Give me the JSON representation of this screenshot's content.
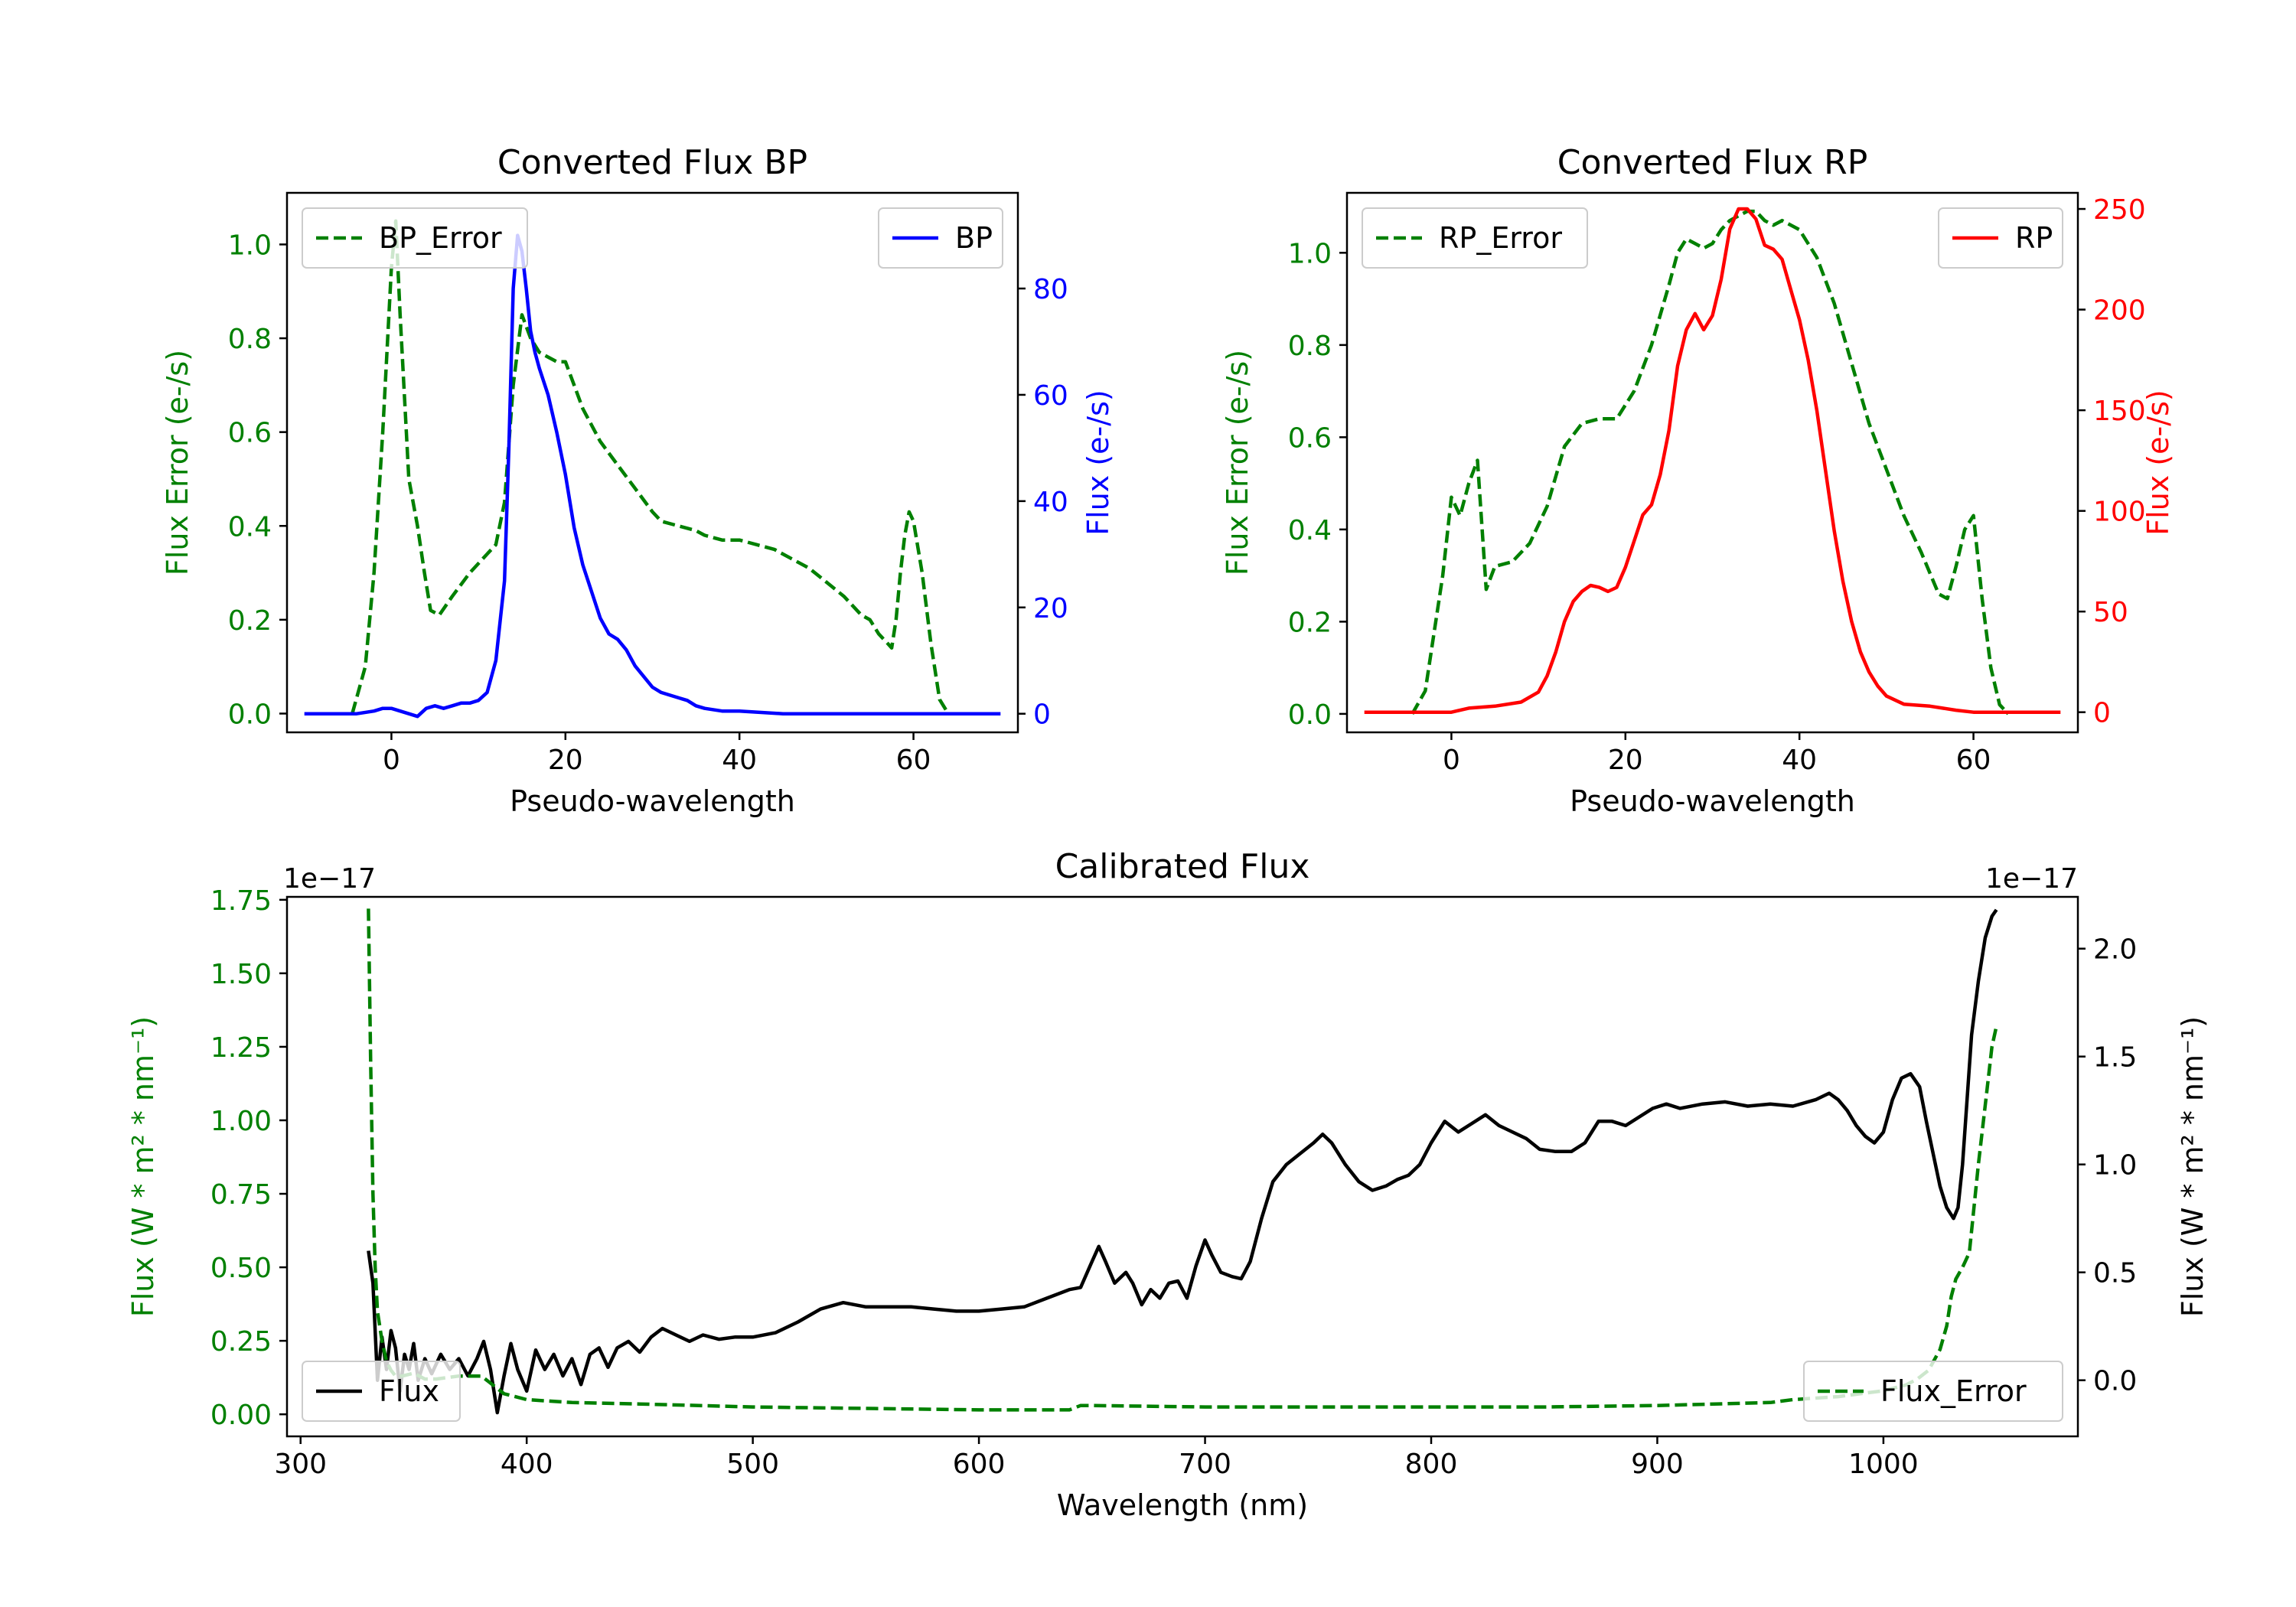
{
  "colors": {
    "green": "#008000",
    "blue": "#0000ff",
    "red": "#ff0000",
    "black": "#000000"
  },
  "chart_data": [
    {
      "type": "line",
      "title": "Converted Flux BP",
      "xlabel": "Pseudo-wavelength",
      "ylabel_left": "Flux Error (e-/s)",
      "ylabel_right": "Flux (e-/s)",
      "xlim": [
        -12,
        72
      ],
      "ylim_left": [
        -0.04,
        1.11
      ],
      "ylim_right": [
        -3.5,
        98
      ],
      "xticks": [
        0,
        20,
        40,
        60
      ],
      "yticks_left": [
        0.0,
        0.2,
        0.4,
        0.6,
        0.8,
        1.0
      ],
      "yticks_right": [
        0,
        20,
        40,
        60,
        80
      ],
      "legend_left": "BP_Error",
      "legend_right": "BP",
      "series": [
        {
          "name": "BP_Error",
          "axis": "left",
          "style": "dashed",
          "color": "green",
          "x": [
            -4.5,
            -3,
            -2,
            -1,
            0,
            0.5,
            1,
            2,
            3,
            3.8,
            4.5,
            5.5,
            7,
            9,
            11,
            12,
            13,
            14,
            15,
            16,
            17,
            18,
            19,
            20,
            21,
            22,
            24,
            26,
            28,
            30,
            31,
            33,
            35,
            36,
            38,
            40,
            42,
            44,
            46,
            48,
            50,
            52,
            54,
            55,
            56,
            57,
            57.5,
            58,
            58.5,
            59,
            59.5,
            60,
            61,
            62,
            63,
            64
          ],
          "y": [
            0.0,
            0.1,
            0.3,
            0.6,
            0.95,
            1.05,
            0.85,
            0.5,
            0.4,
            0.3,
            0.22,
            0.21,
            0.25,
            0.3,
            0.34,
            0.36,
            0.45,
            0.7,
            0.85,
            0.8,
            0.77,
            0.76,
            0.75,
            0.75,
            0.7,
            0.65,
            0.58,
            0.53,
            0.48,
            0.43,
            0.41,
            0.4,
            0.39,
            0.38,
            0.37,
            0.37,
            0.36,
            0.35,
            0.33,
            0.31,
            0.28,
            0.25,
            0.21,
            0.2,
            0.17,
            0.15,
            0.14,
            0.2,
            0.3,
            0.38,
            0.43,
            0.41,
            0.3,
            0.15,
            0.03,
            0.0
          ]
        },
        {
          "name": "BP",
          "axis": "right",
          "style": "solid",
          "color": "blue",
          "x": [
            -10,
            -6,
            -4,
            -2,
            -1,
            0,
            1,
            2,
            3,
            4,
            5,
            6,
            7,
            8,
            9,
            10,
            11,
            12,
            13,
            13.5,
            14,
            14.5,
            15,
            15.5,
            16,
            16.5,
            17,
            18,
            19,
            20,
            21,
            22,
            23,
            24,
            25,
            26,
            27,
            28,
            29,
            30,
            31,
            32,
            33,
            34,
            35,
            36,
            38,
            40,
            45,
            50,
            55,
            60,
            65,
            70
          ],
          "y": [
            0,
            0,
            0,
            0.5,
            1,
            1,
            0.5,
            0,
            -0.5,
            1,
            1.5,
            1,
            1.5,
            2,
            2,
            2.5,
            4,
            10,
            25,
            50,
            80,
            90,
            87,
            80,
            72,
            68,
            65,
            60,
            53,
            45,
            35,
            28,
            23,
            18,
            15,
            14,
            12,
            9,
            7,
            5,
            4,
            3.5,
            3,
            2.5,
            1.5,
            1,
            0.5,
            0.5,
            0,
            0,
            0,
            0,
            0,
            0
          ]
        }
      ]
    },
    {
      "type": "line",
      "title": "Converted Flux RP",
      "xlabel": "Pseudo-wavelength",
      "ylabel_left": "Flux Error (e-/s)",
      "ylabel_right": "Flux (e-/s)",
      "xlim": [
        -12,
        72
      ],
      "ylim_left": [
        -0.04,
        1.13
      ],
      "ylim_right": [
        -10,
        258
      ],
      "xticks": [
        0,
        20,
        40,
        60
      ],
      "yticks_left": [
        0.0,
        0.2,
        0.4,
        0.6,
        0.8,
        1.0
      ],
      "yticks_right": [
        0,
        50,
        100,
        150,
        200,
        250
      ],
      "legend_left": "RP_Error",
      "legend_right": "RP",
      "series": [
        {
          "name": "RP_Error",
          "axis": "left",
          "style": "dashed",
          "color": "green",
          "x": [
            -4.5,
            -3,
            -1,
            0,
            1,
            2,
            3,
            4,
            5,
            7,
            9,
            11,
            13,
            15,
            17,
            19,
            21,
            23,
            25,
            26,
            27,
            28,
            29,
            30,
            31,
            32,
            33,
            34,
            35,
            36,
            37,
            38,
            40,
            42,
            44,
            46,
            48,
            50,
            52,
            54,
            56,
            57,
            58,
            59,
            60,
            61,
            62,
            63,
            64
          ],
          "y": [
            0.0,
            0.05,
            0.3,
            0.47,
            0.43,
            0.5,
            0.55,
            0.27,
            0.32,
            0.33,
            0.37,
            0.45,
            0.58,
            0.63,
            0.64,
            0.64,
            0.7,
            0.8,
            0.93,
            1.0,
            1.03,
            1.02,
            1.01,
            1.02,
            1.05,
            1.07,
            1.08,
            1.09,
            1.09,
            1.07,
            1.06,
            1.07,
            1.05,
            0.99,
            0.89,
            0.76,
            0.63,
            0.53,
            0.43,
            0.35,
            0.26,
            0.25,
            0.32,
            0.4,
            0.43,
            0.25,
            0.1,
            0.02,
            0.0
          ]
        },
        {
          "name": "RP",
          "axis": "right",
          "style": "solid",
          "color": "red",
          "x": [
            -10,
            -5,
            0,
            2,
            5,
            8,
            10,
            11,
            12,
            13,
            14,
            15,
            16,
            17,
            18,
            19,
            20,
            21,
            22,
            23,
            24,
            25,
            26,
            27,
            28,
            29,
            30,
            31,
            32,
            33,
            34,
            35,
            36,
            37,
            38,
            39,
            40,
            41,
            42,
            43,
            44,
            45,
            46,
            47,
            48,
            49,
            50,
            52,
            55,
            58,
            60,
            65,
            70
          ],
          "y": [
            0,
            0,
            0,
            2,
            3,
            5,
            10,
            18,
            30,
            45,
            55,
            60,
            63,
            62,
            60,
            62,
            72,
            85,
            98,
            103,
            118,
            140,
            172,
            190,
            198,
            190,
            197,
            215,
            240,
            250,
            250,
            245,
            232,
            230,
            225,
            210,
            195,
            175,
            150,
            120,
            90,
            65,
            45,
            30,
            20,
            13,
            8,
            4,
            3,
            1,
            0,
            0,
            0
          ]
        }
      ]
    },
    {
      "type": "line",
      "title": "Calibrated Flux",
      "xlabel": "Wavelength (nm)",
      "ylabel_left": "Flux (W * m² * nm⁻¹)",
      "ylabel_right": "Flux (W * m² * nm⁻¹)",
      "offset_left": "1e−17",
      "offset_right": "1e−17",
      "xlim": [
        294,
        1086
      ],
      "ylim_left": [
        -0.075,
        1.76
      ],
      "ylim_right": [
        -0.26,
        2.24
      ],
      "xticks": [
        300,
        400,
        500,
        600,
        700,
        800,
        900,
        1000
      ],
      "yticks_left": [
        0.0,
        0.25,
        0.5,
        0.75,
        1.0,
        1.25,
        1.5,
        1.75
      ],
      "yticks_right": [
        0.0,
        0.5,
        1.0,
        1.5,
        2.0
      ],
      "legend_left": "Flux",
      "legend_right": "Flux_Error",
      "series": [
        {
          "name": "Flux",
          "axis": "right",
          "style": "solid",
          "color": "black",
          "x": [
            330,
            332,
            334,
            336,
            338,
            340,
            342,
            344,
            346,
            348,
            350,
            352,
            355,
            358,
            362,
            366,
            370,
            374,
            378,
            381,
            384,
            387,
            390,
            393,
            396,
            400,
            404,
            408,
            412,
            416,
            420,
            424,
            428,
            432,
            436,
            440,
            445,
            450,
            455,
            460,
            466,
            472,
            478,
            485,
            492,
            500,
            510,
            520,
            530,
            540,
            550,
            560,
            570,
            580,
            590,
            600,
            610,
            620,
            630,
            640,
            645,
            650,
            653,
            656,
            660,
            665,
            668,
            672,
            676,
            680,
            684,
            688,
            692,
            696,
            700,
            703,
            707,
            712,
            716,
            720,
            725,
            730,
            736,
            742,
            748,
            752,
            756,
            762,
            768,
            774,
            780,
            785,
            790,
            795,
            800,
            806,
            812,
            818,
            824,
            830,
            836,
            842,
            848,
            855,
            862,
            868,
            874,
            880,
            886,
            892,
            898,
            904,
            910,
            920,
            930,
            940,
            950,
            960,
            970,
            976,
            980,
            984,
            988,
            992,
            996,
            1000,
            1004,
            1008,
            1012,
            1016,
            1019,
            1022,
            1025,
            1028,
            1031,
            1033,
            1035,
            1037,
            1039,
            1042,
            1045,
            1048,
            1050
          ],
          "y": [
            0.6,
            0.45,
            0.0,
            0.2,
            0.05,
            0.23,
            0.15,
            -0.05,
            0.12,
            0.05,
            0.17,
            0.0,
            0.1,
            0.03,
            0.12,
            0.05,
            0.1,
            0.02,
            0.1,
            0.18,
            0.05,
            -0.15,
            0.02,
            0.17,
            0.05,
            -0.05,
            0.14,
            0.05,
            0.12,
            0.02,
            0.1,
            -0.02,
            0.12,
            0.15,
            0.06,
            0.15,
            0.18,
            0.13,
            0.2,
            0.24,
            0.21,
            0.18,
            0.21,
            0.19,
            0.2,
            0.2,
            0.22,
            0.27,
            0.33,
            0.36,
            0.34,
            0.34,
            0.34,
            0.33,
            0.32,
            0.32,
            0.33,
            0.34,
            0.38,
            0.42,
            0.43,
            0.55,
            0.62,
            0.55,
            0.45,
            0.5,
            0.45,
            0.35,
            0.42,
            0.38,
            0.45,
            0.46,
            0.38,
            0.53,
            0.65,
            0.58,
            0.5,
            0.48,
            0.47,
            0.55,
            0.75,
            0.92,
            1.0,
            1.05,
            1.1,
            1.14,
            1.1,
            1.0,
            0.92,
            0.88,
            0.9,
            0.93,
            0.95,
            1.0,
            1.1,
            1.2,
            1.15,
            1.19,
            1.23,
            1.18,
            1.15,
            1.12,
            1.07,
            1.06,
            1.06,
            1.1,
            1.2,
            1.2,
            1.18,
            1.22,
            1.26,
            1.28,
            1.26,
            1.28,
            1.29,
            1.27,
            1.28,
            1.27,
            1.3,
            1.33,
            1.3,
            1.25,
            1.18,
            1.13,
            1.1,
            1.15,
            1.3,
            1.4,
            1.42,
            1.36,
            1.2,
            1.05,
            0.9,
            0.8,
            0.75,
            0.8,
            1.0,
            1.3,
            1.6,
            1.85,
            2.05,
            2.15,
            2.18
          ]
        },
        {
          "name": "Flux_Error",
          "axis": "left",
          "style": "dashed",
          "color": "green",
          "x": [
            330,
            331,
            332,
            333,
            334,
            336,
            338,
            340,
            342,
            345,
            350,
            355,
            360,
            370,
            380,
            390,
            400,
            420,
            450,
            500,
            550,
            600,
            640,
            645,
            650,
            700,
            750,
            800,
            850,
            900,
            950,
            960,
            980,
            1000,
            1010,
            1015,
            1020,
            1025,
            1028,
            1030,
            1032,
            1035,
            1038,
            1040,
            1042,
            1045,
            1048,
            1050
          ],
          "y": [
            1.72,
            1.2,
            0.75,
            0.5,
            0.35,
            0.25,
            0.18,
            0.15,
            0.13,
            0.13,
            0.14,
            0.12,
            0.12,
            0.13,
            0.13,
            0.07,
            0.05,
            0.04,
            0.035,
            0.025,
            0.02,
            0.015,
            0.015,
            0.03,
            0.03,
            0.025,
            0.025,
            0.025,
            0.025,
            0.03,
            0.04,
            0.05,
            0.06,
            0.08,
            0.1,
            0.12,
            0.15,
            0.22,
            0.3,
            0.4,
            0.46,
            0.5,
            0.55,
            0.7,
            0.85,
            1.05,
            1.25,
            1.32
          ]
        }
      ]
    }
  ]
}
